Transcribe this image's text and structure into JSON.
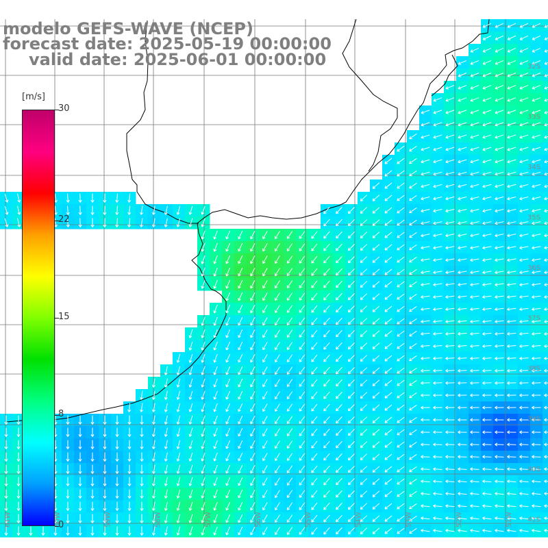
{
  "title": {
    "model": "modelo GEFS-WAVE (NCEP)",
    "forecast": "forecast date: 2025-05-19 00:00:00",
    "valid": "valid date: 2025-06-01 00:00:00"
  },
  "colorbar": {
    "unit": "[m/s]",
    "ticks": [
      "30",
      "22",
      "15",
      "8",
      "0"
    ],
    "tick_values": [
      30,
      22,
      15,
      8,
      0
    ],
    "min": 0,
    "max": 30,
    "colors": [
      "#0000ff",
      "#00a0ff",
      "#00ffff",
      "#00ff80",
      "#00e000",
      "#80ff00",
      "#ffff00",
      "#ffa000",
      "#ff0000",
      "#ff0080",
      "#c0006a"
    ]
  },
  "map": {
    "lat_labels": [
      "32S",
      "33S",
      "34S",
      "35S",
      "36S",
      "37S",
      "38S",
      "39S",
      "40S",
      "41S"
    ],
    "lon_labels": [
      "61W",
      "60W",
      "59W",
      "58W",
      "57W",
      "56W",
      "55W",
      "54W",
      "53W",
      "52W",
      "51W"
    ],
    "lon_range": [
      -61.5,
      -50.5
    ],
    "lat_range": [
      -41.5,
      -31.5
    ],
    "land_color": "#ffffff",
    "arrow_color": "#ffffff"
  }
}
